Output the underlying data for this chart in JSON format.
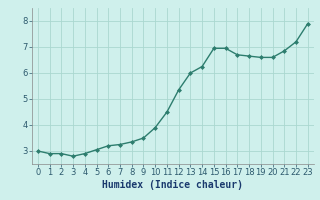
{
  "x": [
    0,
    1,
    2,
    3,
    4,
    5,
    6,
    7,
    8,
    9,
    10,
    11,
    12,
    13,
    14,
    15,
    16,
    17,
    18,
    19,
    20,
    21,
    22,
    23
  ],
  "y": [
    3.0,
    2.9,
    2.9,
    2.8,
    2.9,
    3.05,
    3.2,
    3.25,
    3.35,
    3.5,
    3.9,
    4.5,
    5.35,
    6.0,
    6.25,
    6.95,
    6.95,
    6.7,
    6.65,
    6.6,
    6.6,
    6.85,
    7.2,
    7.9
  ],
  "line_color": "#2d7d6e",
  "marker": "D",
  "marker_size": 2.0,
  "line_width": 1.0,
  "bg_color": "#cff0ec",
  "grid_color": "#aad8d0",
  "xlabel": "Humidex (Indice chaleur)",
  "xlabel_fontsize": 7,
  "tick_fontsize": 6,
  "ylim": [
    2.5,
    8.5
  ],
  "xlim": [
    -0.5,
    23.5
  ],
  "yticks": [
    3,
    4,
    5,
    6,
    7,
    8
  ],
  "xticks": [
    0,
    1,
    2,
    3,
    4,
    5,
    6,
    7,
    8,
    9,
    10,
    11,
    12,
    13,
    14,
    15,
    16,
    17,
    18,
    19,
    20,
    21,
    22,
    23
  ]
}
